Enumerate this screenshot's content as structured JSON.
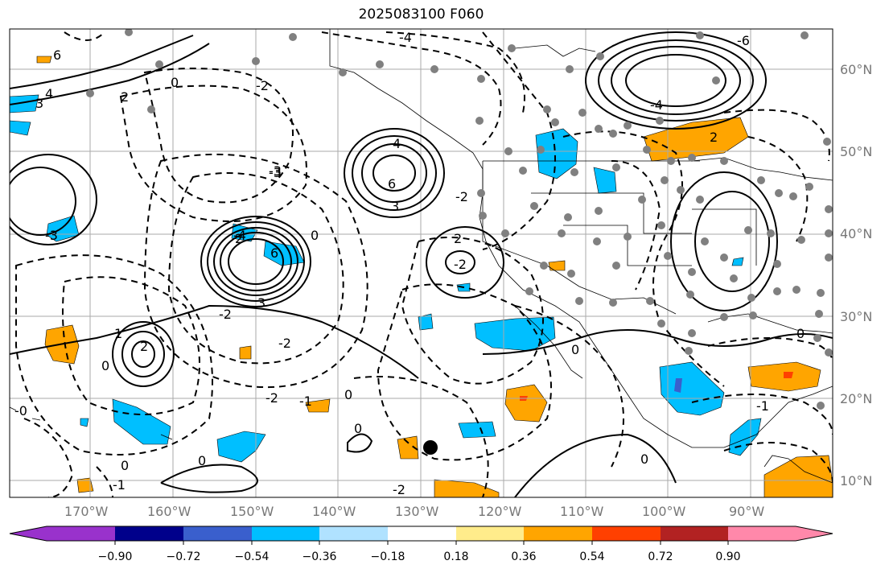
{
  "title": "2025083100 F060",
  "lon_labels": [
    "170°W",
    "160°W",
    "150°W",
    "140°W",
    "130°W",
    "120°W",
    "110°W",
    "100°W",
    "90°W"
  ],
  "lat_labels": [
    "60°N",
    "50°N",
    "40°N",
    "30°N",
    "20°N",
    "10°N"
  ],
  "colorbar": {
    "ticks": [
      "−0.90",
      "−0.72",
      "−0.54",
      "−0.36",
      "−0.18",
      "0.18",
      "0.36",
      "0.54",
      "0.72",
      "0.90"
    ],
    "colors": [
      "#9932cc",
      "#00008b",
      "#3a5fcd",
      "#00bfff",
      "#b0e2ff",
      "#ffffff",
      "#ffec8b",
      "#ffa500",
      "#ff4000",
      "#b22222",
      "#ff88aa"
    ]
  },
  "contour_labels": [
    "6",
    "4",
    "3",
    "2",
    "0",
    "-2",
    "-3",
    "-4",
    "-6",
    "6",
    "4",
    "3",
    "2",
    "-2",
    "-4",
    "6",
    "3",
    "2",
    "0",
    "-2",
    "0",
    "-3",
    "2",
    "-2",
    "0",
    "-1",
    "-2",
    "0",
    "-3",
    "-4",
    "2",
    "-2",
    "0",
    "-1",
    "0",
    "1",
    "0",
    "-2",
    "-1",
    "-0",
    "0",
    "0"
  ],
  "colors": {
    "positive_fill": "#ffa500",
    "negative_fill": "#00bfff",
    "land_marker": "#808080",
    "contour": "#000000"
  }
}
